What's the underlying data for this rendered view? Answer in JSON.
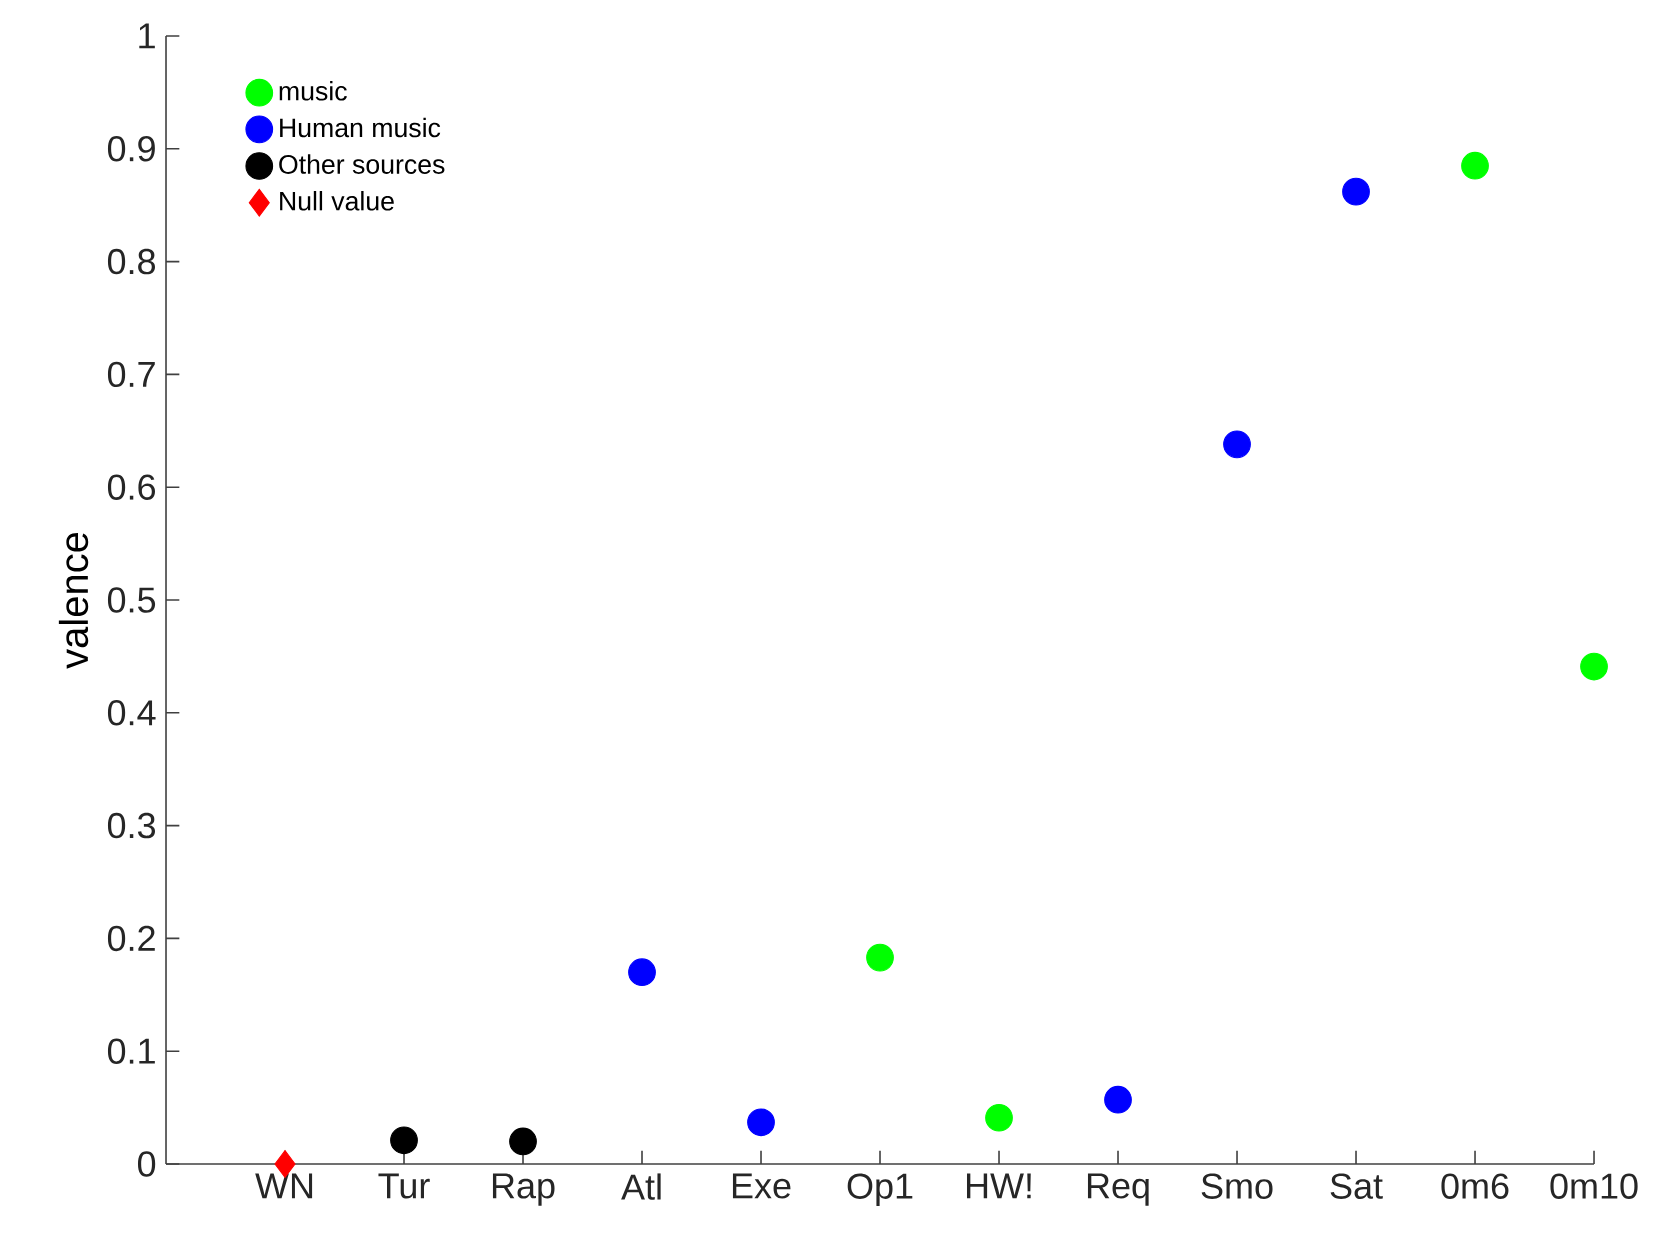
{
  "chart_data": {
    "type": "scatter",
    "ylabel": "valence",
    "categories": [
      "WN",
      "Tur",
      "Rap",
      "Atl",
      "Exe",
      "Op1",
      "HW!",
      "Req",
      "Smo",
      "Sat",
      "0m6",
      "0m10"
    ],
    "series": [
      {
        "name": "music",
        "color": "#00ff00",
        "marker": "circle",
        "values": [
          null,
          null,
          null,
          null,
          null,
          0.183,
          0.041,
          null,
          null,
          null,
          0.885,
          0.441
        ]
      },
      {
        "name": "Human music",
        "color": "#0000ff",
        "marker": "circle",
        "values": [
          null,
          null,
          null,
          0.17,
          0.037,
          null,
          null,
          0.057,
          0.638,
          0.862,
          null,
          null
        ]
      },
      {
        "name": "Other sources",
        "color": "#000000",
        "marker": "circle",
        "values": [
          null,
          0.021,
          0.02,
          null,
          null,
          null,
          null,
          null,
          null,
          null,
          null,
          null
        ]
      },
      {
        "name": "Null value",
        "color": "#ff0000",
        "marker": "diamond",
        "values": [
          0,
          null,
          null,
          null,
          null,
          null,
          null,
          null,
          null,
          null,
          null,
          null
        ]
      }
    ],
    "ylim": [
      0,
      1
    ],
    "yticks": [
      0,
      0.1,
      0.2,
      0.3,
      0.4,
      0.5,
      0.6,
      0.7,
      0.8,
      0.9,
      1
    ],
    "legend": "top left"
  }
}
